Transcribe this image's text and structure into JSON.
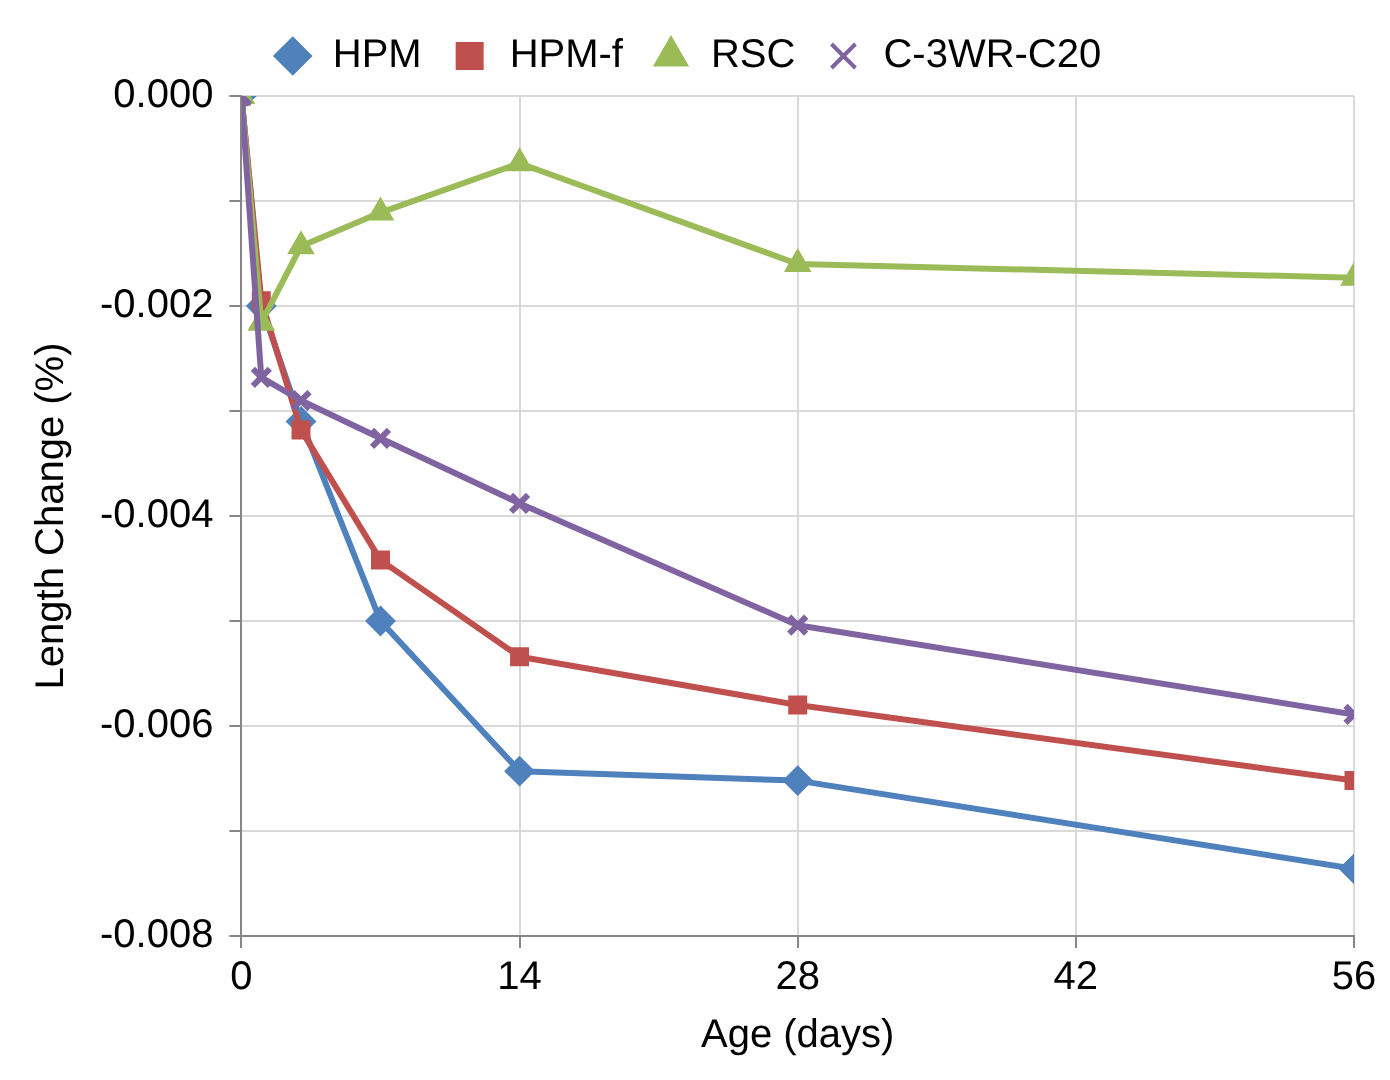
{
  "chart_data": {
    "type": "line",
    "xlabel": "Age (days)",
    "ylabel": "Length Change (%)",
    "x": [
      0,
      1,
      3,
      7,
      14,
      28,
      56
    ],
    "series": [
      {
        "name": "HPM",
        "color": "#4f81bd",
        "marker": "diamond",
        "values": [
          0,
          -0.002,
          -0.0031,
          -0.005,
          -0.00643,
          -0.00652,
          -0.00736
        ]
      },
      {
        "name": "HPM-f",
        "color": "#c0504d",
        "marker": "square",
        "values": [
          0,
          -0.00195,
          -0.00318,
          -0.00442,
          -0.00534,
          -0.0058,
          -0.00652
        ]
      },
      {
        "name": "RSC",
        "color": "#9bbb59",
        "marker": "triangle",
        "values": [
          0,
          -0.00216,
          -0.00143,
          -0.00111,
          -0.00064,
          -0.0016,
          -0.00173
        ]
      },
      {
        "name": "C-3WR-C20",
        "color": "#8064a2",
        "marker": "cross",
        "values": [
          0,
          -0.00268,
          -0.0029,
          -0.00326,
          -0.00388,
          -0.00504,
          -0.00589
        ]
      }
    ],
    "xlim": [
      0,
      56
    ],
    "xticks": [
      0,
      14,
      28,
      42,
      56
    ],
    "ylim": [
      -0.008,
      0
    ],
    "yticks": [
      {
        "value": 0,
        "label": "0.000"
      },
      {
        "value": -0.001,
        "label": null
      },
      {
        "value": -0.002,
        "label": "-0.002"
      },
      {
        "value": -0.003,
        "label": null
      },
      {
        "value": -0.004,
        "label": "-0.004"
      },
      {
        "value": -0.005,
        "label": null
      },
      {
        "value": -0.006,
        "label": "-0.006"
      },
      {
        "value": -0.007,
        "label": null
      },
      {
        "value": -0.008,
        "label": "-0.008"
      }
    ],
    "grid": true,
    "legend": "top",
    "line_style": "solid"
  }
}
